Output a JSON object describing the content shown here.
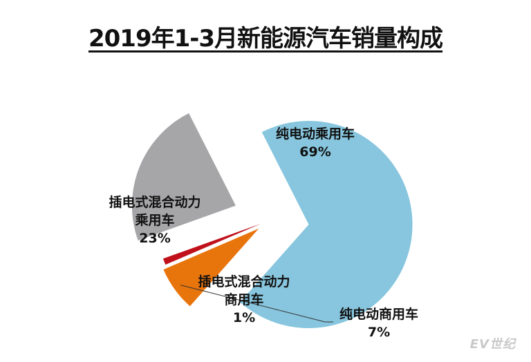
{
  "chart_data": {
    "type": "pie",
    "title": "2019年1-3月新能源汽车销量构成",
    "slices": [
      {
        "label_lines": [
          "纯电动乘用车"
        ],
        "value_text": "69%",
        "value": 69,
        "color": "#87c6de"
      },
      {
        "label_lines": [
          "纯电动商用车"
        ],
        "value_text": "7%",
        "value": 7,
        "color": "#e8740c"
      },
      {
        "label_lines": [
          "插电式混合动力",
          "商用车"
        ],
        "value_text": "1%",
        "value": 1,
        "color": "#c0111b"
      },
      {
        "label_lines": [
          "插电式混合动力",
          "乘用车"
        ],
        "value_text": "23%",
        "value": 23,
        "color": "#a6a5a8"
      }
    ]
  },
  "watermark": "EV世纪"
}
